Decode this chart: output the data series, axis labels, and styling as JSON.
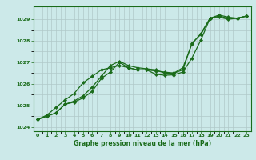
{
  "title": "Graphe pression niveau de la mer (hPa)",
  "bg_color": "#cce9e9",
  "plot_bg_color": "#cce9e9",
  "line_color": "#1a6b1a",
  "grid_color": "#b0c8c8",
  "xlim": [
    -0.5,
    23.5
  ],
  "ylim": [
    1023.8,
    1029.6
  ],
  "yticks": [
    1024,
    1025,
    1026,
    1027,
    1028,
    1029
  ],
  "xticks": [
    0,
    1,
    2,
    3,
    4,
    5,
    6,
    7,
    8,
    9,
    10,
    11,
    12,
    13,
    14,
    15,
    16,
    17,
    18,
    19,
    20,
    21,
    22,
    23
  ],
  "series": [
    [
      1024.35,
      1024.5,
      1024.65,
      1025.05,
      1025.15,
      1025.35,
      1025.65,
      1026.25,
      1026.55,
      1027.0,
      1026.75,
      1026.65,
      1026.65,
      1026.45,
      1026.4,
      1026.42,
      1026.55,
      1027.2,
      1028.05,
      1029.05,
      1029.1,
      1029.0,
      1029.05,
      1029.15
    ],
    [
      1024.35,
      1024.5,
      1024.65,
      1025.05,
      1025.2,
      1025.45,
      1025.85,
      1026.35,
      1026.85,
      1027.05,
      1026.85,
      1026.75,
      1026.7,
      1026.65,
      1026.5,
      1026.5,
      1026.65,
      1027.9,
      1028.3,
      1029.05,
      1029.2,
      1029.1,
      1029.05,
      1029.15
    ],
    [
      1024.35,
      1024.55,
      1024.9,
      1025.25,
      1025.55,
      1026.05,
      1026.35,
      1026.65,
      1026.75,
      1026.85,
      1026.75,
      1026.65,
      1026.65,
      1026.6,
      1026.55,
      1026.5,
      1026.75,
      1027.85,
      1028.35,
      1029.05,
      1029.15,
      1029.05,
      1029.05,
      1029.15
    ]
  ]
}
